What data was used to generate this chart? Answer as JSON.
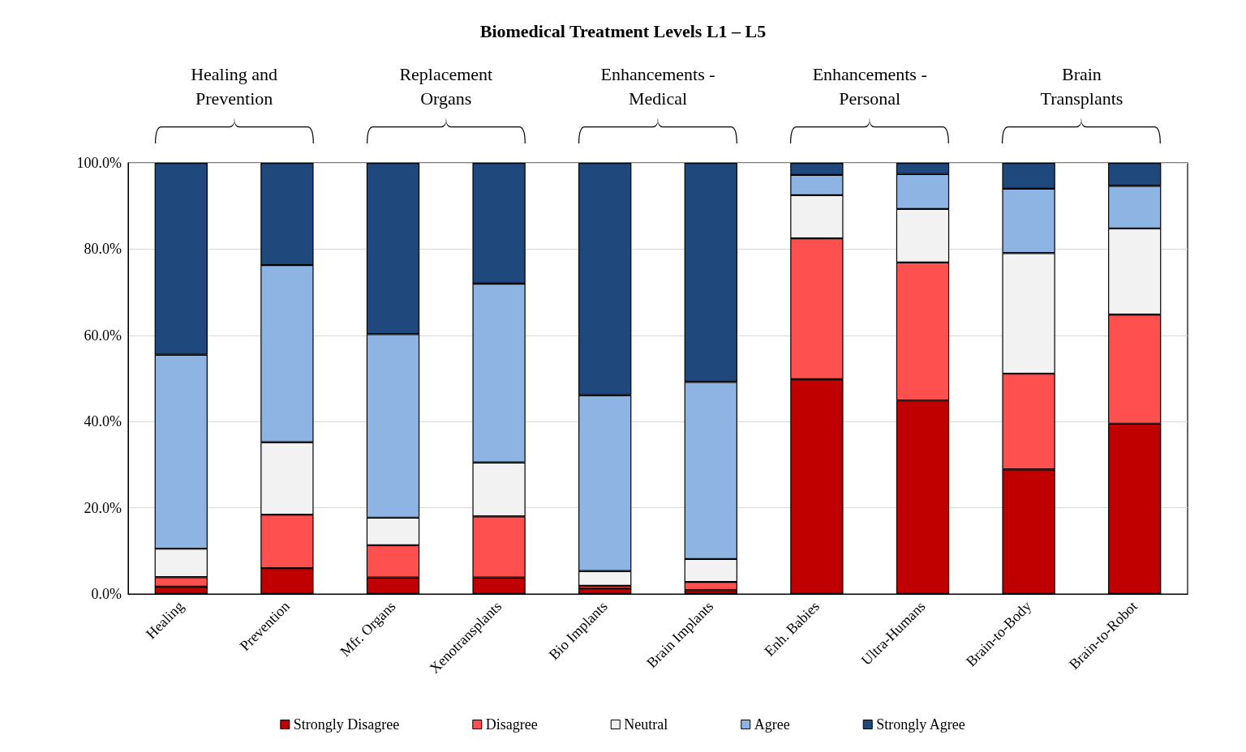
{
  "chart_data": {
    "type": "bar",
    "title": "Biomedical Treatment Levels L1 – L5",
    "stacked": true,
    "categories": [
      "Healing",
      "Prevention",
      "Mfr. Organs",
      "Xenotransplants",
      "Bio Implants",
      "Brain Implants",
      "Enh. Babies",
      "Ultra-Humans",
      "Brain-to-Body",
      "Brain-to-Robot"
    ],
    "series": [
      {
        "name": "Strongly Disagree",
        "color": "#c00000",
        "values": [
          1.7,
          6.0,
          3.8,
          3.8,
          1.3,
          0.9,
          49.8,
          44.9,
          28.9,
          39.5
        ]
      },
      {
        "name": "Disagree",
        "color": "#ff5050",
        "values": [
          2.2,
          12.4,
          7.5,
          14.2,
          0.6,
          1.9,
          32.7,
          32.0,
          22.2,
          25.3
        ]
      },
      {
        "name": "Neutral",
        "color": "#f2f2f2",
        "values": [
          6.6,
          16.8,
          6.4,
          12.5,
          3.4,
          5.3,
          10.0,
          12.4,
          28.0,
          20.0
        ]
      },
      {
        "name": "Agree",
        "color": "#8eb4e3",
        "values": [
          45.0,
          41.1,
          42.6,
          41.5,
          40.8,
          41.1,
          4.7,
          8.1,
          14.9,
          9.9
        ]
      },
      {
        "name": "Strongly Agree",
        "color": "#1f497d",
        "values": [
          44.5,
          23.7,
          39.7,
          28.0,
          53.9,
          50.8,
          2.8,
          2.6,
          6.0,
          5.3
        ]
      }
    ],
    "ylim": [
      0,
      100
    ],
    "yticks": [
      {
        "value": 0,
        "label": "0.0%"
      },
      {
        "value": 20,
        "label": "20.0%"
      },
      {
        "value": 40,
        "label": "40.0%"
      },
      {
        "value": 60,
        "label": "60.0%"
      },
      {
        "value": 80,
        "label": "80.0%"
      },
      {
        "value": 100,
        "label": "100.0%"
      }
    ],
    "grid": "y",
    "legend": "bottom",
    "annotations": [
      "Healing and\nPrevention",
      "Replacement\nOrgans",
      "Enhancements -\nMedical",
      "Enhancements -\nPersonal",
      "Brain\nTransplants"
    ]
  }
}
